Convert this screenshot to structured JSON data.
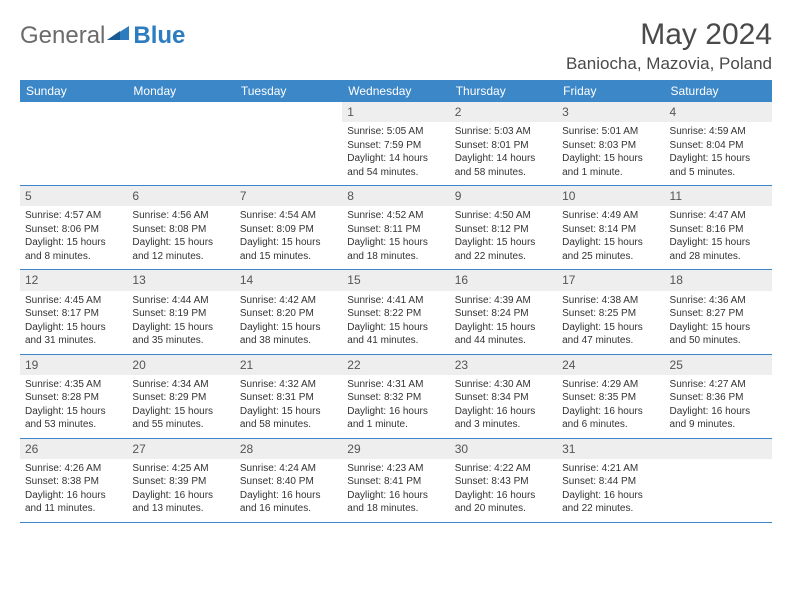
{
  "logo": {
    "text1": "General",
    "text2": "Blue"
  },
  "title": "May 2024",
  "location": "Baniocha, Mazovia, Poland",
  "colors": {
    "header_bg": "#3b87c8",
    "header_text": "#ffffff",
    "daynum_bg": "#eeeeee",
    "rule": "#3b87c8",
    "text": "#333333",
    "logo_gray": "#6b6b6b",
    "logo_blue": "#2e7cc0"
  },
  "day_headers": [
    "Sunday",
    "Monday",
    "Tuesday",
    "Wednesday",
    "Thursday",
    "Friday",
    "Saturday"
  ],
  "weeks": [
    [
      null,
      null,
      null,
      {
        "n": "1",
        "sr": "5:05 AM",
        "ss": "7:59 PM",
        "dl": "14 hours and 54 minutes."
      },
      {
        "n": "2",
        "sr": "5:03 AM",
        "ss": "8:01 PM",
        "dl": "14 hours and 58 minutes."
      },
      {
        "n": "3",
        "sr": "5:01 AM",
        "ss": "8:03 PM",
        "dl": "15 hours and 1 minute."
      },
      {
        "n": "4",
        "sr": "4:59 AM",
        "ss": "8:04 PM",
        "dl": "15 hours and 5 minutes."
      }
    ],
    [
      {
        "n": "5",
        "sr": "4:57 AM",
        "ss": "8:06 PM",
        "dl": "15 hours and 8 minutes."
      },
      {
        "n": "6",
        "sr": "4:56 AM",
        "ss": "8:08 PM",
        "dl": "15 hours and 12 minutes."
      },
      {
        "n": "7",
        "sr": "4:54 AM",
        "ss": "8:09 PM",
        "dl": "15 hours and 15 minutes."
      },
      {
        "n": "8",
        "sr": "4:52 AM",
        "ss": "8:11 PM",
        "dl": "15 hours and 18 minutes."
      },
      {
        "n": "9",
        "sr": "4:50 AM",
        "ss": "8:12 PM",
        "dl": "15 hours and 22 minutes."
      },
      {
        "n": "10",
        "sr": "4:49 AM",
        "ss": "8:14 PM",
        "dl": "15 hours and 25 minutes."
      },
      {
        "n": "11",
        "sr": "4:47 AM",
        "ss": "8:16 PM",
        "dl": "15 hours and 28 minutes."
      }
    ],
    [
      {
        "n": "12",
        "sr": "4:45 AM",
        "ss": "8:17 PM",
        "dl": "15 hours and 31 minutes."
      },
      {
        "n": "13",
        "sr": "4:44 AM",
        "ss": "8:19 PM",
        "dl": "15 hours and 35 minutes."
      },
      {
        "n": "14",
        "sr": "4:42 AM",
        "ss": "8:20 PM",
        "dl": "15 hours and 38 minutes."
      },
      {
        "n": "15",
        "sr": "4:41 AM",
        "ss": "8:22 PM",
        "dl": "15 hours and 41 minutes."
      },
      {
        "n": "16",
        "sr": "4:39 AM",
        "ss": "8:24 PM",
        "dl": "15 hours and 44 minutes."
      },
      {
        "n": "17",
        "sr": "4:38 AM",
        "ss": "8:25 PM",
        "dl": "15 hours and 47 minutes."
      },
      {
        "n": "18",
        "sr": "4:36 AM",
        "ss": "8:27 PM",
        "dl": "15 hours and 50 minutes."
      }
    ],
    [
      {
        "n": "19",
        "sr": "4:35 AM",
        "ss": "8:28 PM",
        "dl": "15 hours and 53 minutes."
      },
      {
        "n": "20",
        "sr": "4:34 AM",
        "ss": "8:29 PM",
        "dl": "15 hours and 55 minutes."
      },
      {
        "n": "21",
        "sr": "4:32 AM",
        "ss": "8:31 PM",
        "dl": "15 hours and 58 minutes."
      },
      {
        "n": "22",
        "sr": "4:31 AM",
        "ss": "8:32 PM",
        "dl": "16 hours and 1 minute."
      },
      {
        "n": "23",
        "sr": "4:30 AM",
        "ss": "8:34 PM",
        "dl": "16 hours and 3 minutes."
      },
      {
        "n": "24",
        "sr": "4:29 AM",
        "ss": "8:35 PM",
        "dl": "16 hours and 6 minutes."
      },
      {
        "n": "25",
        "sr": "4:27 AM",
        "ss": "8:36 PM",
        "dl": "16 hours and 9 minutes."
      }
    ],
    [
      {
        "n": "26",
        "sr": "4:26 AM",
        "ss": "8:38 PM",
        "dl": "16 hours and 11 minutes."
      },
      {
        "n": "27",
        "sr": "4:25 AM",
        "ss": "8:39 PM",
        "dl": "16 hours and 13 minutes."
      },
      {
        "n": "28",
        "sr": "4:24 AM",
        "ss": "8:40 PM",
        "dl": "16 hours and 16 minutes."
      },
      {
        "n": "29",
        "sr": "4:23 AM",
        "ss": "8:41 PM",
        "dl": "16 hours and 18 minutes."
      },
      {
        "n": "30",
        "sr": "4:22 AM",
        "ss": "8:43 PM",
        "dl": "16 hours and 20 minutes."
      },
      {
        "n": "31",
        "sr": "4:21 AM",
        "ss": "8:44 PM",
        "dl": "16 hours and 22 minutes."
      },
      null
    ]
  ],
  "labels": {
    "sunrise": "Sunrise:",
    "sunset": "Sunset:",
    "daylight": "Daylight:"
  }
}
